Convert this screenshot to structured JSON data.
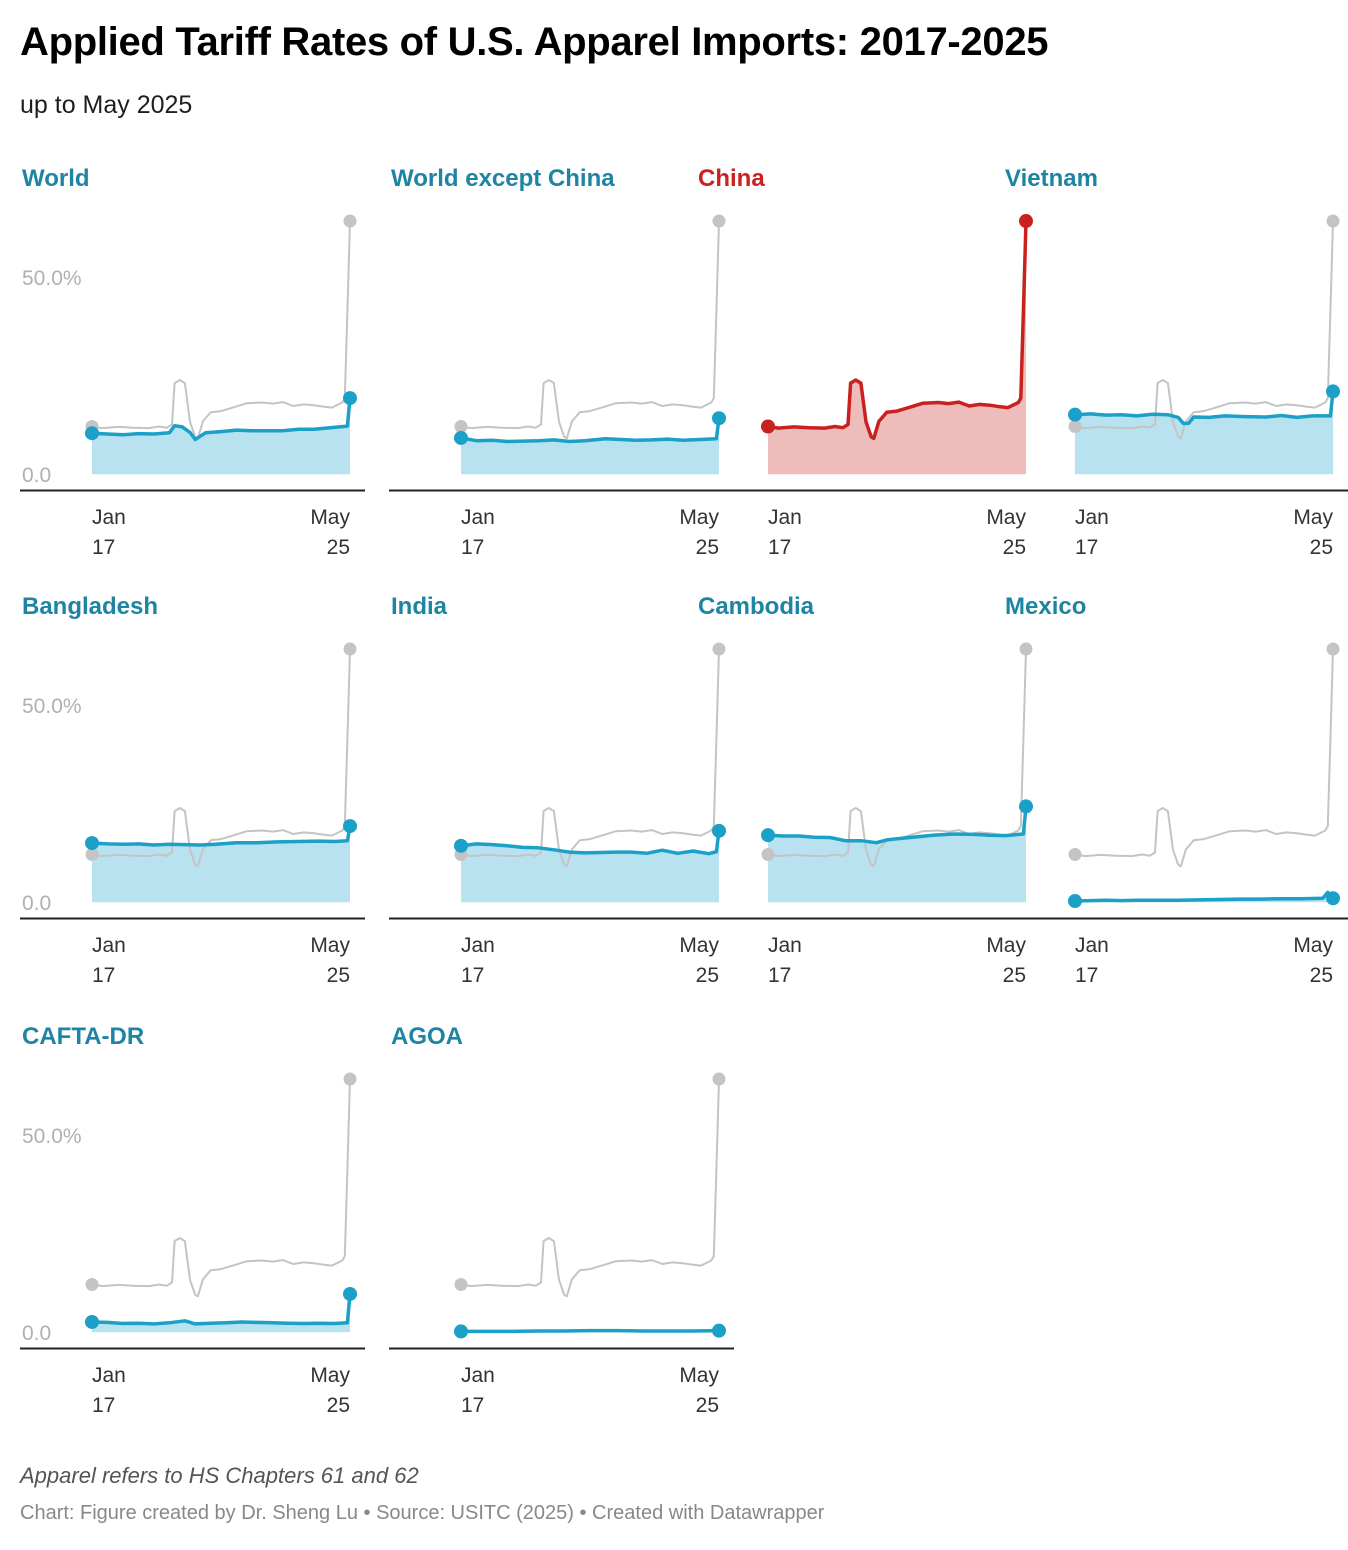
{
  "title": "Applied Tariff Rates of U.S. Apparel Imports: 2017-2025",
  "subtitle": "up to May 2025",
  "notes": "Apparel refers to HS Chapters 61 and 62",
  "footer": "Chart: Figure created by Dr. Sheng Lu • Source: USITC (2025) • Created with Datawrapper",
  "colors": {
    "highlight_line": "#1ba0c8",
    "highlight_fill": "#b8e2f0",
    "china_line": "#c9211f",
    "china_fill": "#efbcbc",
    "reference_line": "#c4c4c4",
    "title_blue": "#1e84a4",
    "axis": "#222222"
  },
  "chart_data": {
    "type": "area",
    "small_multiples": true,
    "unit": "%",
    "ylim": [
      -4,
      67
    ],
    "y_ticks": [
      {
        "value": 0,
        "label": "0.0"
      },
      {
        "value": 50,
        "label": "50.0%"
      }
    ],
    "x_range": [
      "2017-01",
      "2025-05"
    ],
    "x_ticks": [
      {
        "month": "Jan",
        "year": "17"
      },
      {
        "month": "May",
        "year": "25"
      }
    ],
    "reference_series": "China",
    "panels": [
      {
        "name": "World",
        "highlight": false,
        "show_y_ticks": true,
        "points": [
          [
            0,
            10.4
          ],
          [
            6,
            10.2
          ],
          [
            12,
            10.0
          ],
          [
            18,
            10.3
          ],
          [
            24,
            10.2
          ],
          [
            30,
            10.5
          ],
          [
            32,
            12.3
          ],
          [
            35,
            12.0
          ],
          [
            38,
            10.6
          ],
          [
            40,
            8.8
          ],
          [
            44,
            10.5
          ],
          [
            50,
            10.8
          ],
          [
            56,
            11.2
          ],
          [
            62,
            11.0
          ],
          [
            68,
            11.0
          ],
          [
            74,
            11.0
          ],
          [
            80,
            11.4
          ],
          [
            86,
            11.4
          ],
          [
            99,
            12.2
          ],
          [
            100,
            19.3
          ]
        ]
      },
      {
        "name": "World except China",
        "highlight": false,
        "show_y_ticks": false,
        "points": [
          [
            0,
            9.2
          ],
          [
            6,
            8.5
          ],
          [
            12,
            8.6
          ],
          [
            18,
            8.3
          ],
          [
            24,
            8.4
          ],
          [
            30,
            8.5
          ],
          [
            36,
            8.7
          ],
          [
            42,
            8.3
          ],
          [
            48,
            8.5
          ],
          [
            56,
            9.0
          ],
          [
            62,
            8.8
          ],
          [
            68,
            8.6
          ],
          [
            74,
            8.7
          ],
          [
            80,
            8.9
          ],
          [
            86,
            8.6
          ],
          [
            99,
            9.0
          ],
          [
            100,
            14.2
          ]
        ]
      },
      {
        "name": "China",
        "highlight": true,
        "show_y_ticks": false,
        "points": [
          [
            0,
            12.1
          ],
          [
            4,
            11.7
          ],
          [
            10,
            12.0
          ],
          [
            16,
            11.8
          ],
          [
            22,
            11.7
          ],
          [
            26,
            12.1
          ],
          [
            29,
            11.8
          ],
          [
            31,
            12.6
          ],
          [
            32,
            23.1
          ],
          [
            34,
            23.9
          ],
          [
            36,
            23.1
          ],
          [
            38,
            13.3
          ],
          [
            40,
            9.5
          ],
          [
            41,
            9.1
          ],
          [
            43,
            13.4
          ],
          [
            46,
            15.7
          ],
          [
            50,
            16.0
          ],
          [
            56,
            17.2
          ],
          [
            60,
            18.0
          ],
          [
            66,
            18.2
          ],
          [
            70,
            17.9
          ],
          [
            74,
            18.3
          ],
          [
            78,
            17.3
          ],
          [
            82,
            17.7
          ],
          [
            86,
            17.5
          ],
          [
            90,
            17.1
          ],
          [
            93,
            16.9
          ],
          [
            97,
            18.2
          ],
          [
            98,
            19.3
          ],
          [
            99,
            41.3
          ],
          [
            100,
            64.2
          ]
        ]
      },
      {
        "name": "Vietnam",
        "highlight": false,
        "show_y_ticks": false,
        "points": [
          [
            0,
            15.1
          ],
          [
            6,
            15.3
          ],
          [
            12,
            15.0
          ],
          [
            18,
            15.1
          ],
          [
            24,
            14.8
          ],
          [
            30,
            15.2
          ],
          [
            36,
            15.1
          ],
          [
            40,
            14.4
          ],
          [
            42,
            12.9
          ],
          [
            44,
            12.9
          ],
          [
            46,
            14.5
          ],
          [
            52,
            14.4
          ],
          [
            58,
            14.8
          ],
          [
            66,
            14.6
          ],
          [
            74,
            14.5
          ],
          [
            80,
            14.9
          ],
          [
            86,
            14.4
          ],
          [
            92,
            14.8
          ],
          [
            99,
            14.8
          ],
          [
            100,
            21.0
          ]
        ]
      },
      {
        "name": "Bangladesh",
        "highlight": false,
        "show_y_ticks": true,
        "points": [
          [
            0,
            15.0
          ],
          [
            6,
            14.8
          ],
          [
            12,
            14.7
          ],
          [
            18,
            14.8
          ],
          [
            24,
            14.5
          ],
          [
            30,
            14.7
          ],
          [
            36,
            14.6
          ],
          [
            42,
            14.5
          ],
          [
            48,
            14.7
          ],
          [
            56,
            15.1
          ],
          [
            64,
            15.1
          ],
          [
            72,
            15.3
          ],
          [
            80,
            15.4
          ],
          [
            88,
            15.5
          ],
          [
            94,
            15.4
          ],
          [
            99,
            15.6
          ],
          [
            100,
            19.3
          ]
        ]
      },
      {
        "name": "India",
        "highlight": false,
        "show_y_ticks": false,
        "points": [
          [
            0,
            14.3
          ],
          [
            6,
            14.8
          ],
          [
            12,
            14.6
          ],
          [
            18,
            14.3
          ],
          [
            24,
            13.9
          ],
          [
            30,
            13.8
          ],
          [
            36,
            13.3
          ],
          [
            42,
            12.7
          ],
          [
            48,
            12.5
          ],
          [
            54,
            12.6
          ],
          [
            60,
            12.7
          ],
          [
            66,
            12.7
          ],
          [
            72,
            12.4
          ],
          [
            78,
            13.2
          ],
          [
            84,
            12.4
          ],
          [
            90,
            13.0
          ],
          [
            96,
            12.3
          ],
          [
            99,
            12.8
          ],
          [
            100,
            18.1
          ]
        ]
      },
      {
        "name": "Cambodia",
        "highlight": false,
        "show_y_ticks": false,
        "points": [
          [
            0,
            17.0
          ],
          [
            6,
            16.8
          ],
          [
            12,
            16.8
          ],
          [
            18,
            16.5
          ],
          [
            24,
            16.4
          ],
          [
            30,
            15.6
          ],
          [
            36,
            15.6
          ],
          [
            42,
            15.1
          ],
          [
            46,
            15.8
          ],
          [
            52,
            16.2
          ],
          [
            58,
            16.6
          ],
          [
            64,
            17.0
          ],
          [
            72,
            17.3
          ],
          [
            80,
            17.2
          ],
          [
            86,
            17.0
          ],
          [
            92,
            16.9
          ],
          [
            99,
            17.3
          ],
          [
            100,
            24.3
          ]
        ]
      },
      {
        "name": "Mexico",
        "highlight": false,
        "show_y_ticks": false,
        "points": [
          [
            0,
            0.3
          ],
          [
            6,
            0.4
          ],
          [
            12,
            0.5
          ],
          [
            18,
            0.4
          ],
          [
            24,
            0.5
          ],
          [
            32,
            0.5
          ],
          [
            40,
            0.5
          ],
          [
            48,
            0.6
          ],
          [
            56,
            0.7
          ],
          [
            64,
            0.8
          ],
          [
            72,
            0.8
          ],
          [
            80,
            0.9
          ],
          [
            88,
            0.9
          ],
          [
            96,
            1.0
          ],
          [
            98,
            2.5
          ],
          [
            99,
            1.2
          ],
          [
            100,
            1.0
          ]
        ]
      },
      {
        "name": "CAFTA-DR",
        "highlight": false,
        "show_y_ticks": true,
        "points": [
          [
            0,
            2.6
          ],
          [
            6,
            2.5
          ],
          [
            12,
            2.2
          ],
          [
            18,
            2.3
          ],
          [
            24,
            2.1
          ],
          [
            30,
            2.4
          ],
          [
            36,
            2.9
          ],
          [
            40,
            2.1
          ],
          [
            46,
            2.3
          ],
          [
            52,
            2.4
          ],
          [
            58,
            2.6
          ],
          [
            64,
            2.5
          ],
          [
            70,
            2.4
          ],
          [
            76,
            2.3
          ],
          [
            82,
            2.2
          ],
          [
            88,
            2.3
          ],
          [
            94,
            2.2
          ],
          [
            99,
            2.4
          ],
          [
            100,
            9.7
          ]
        ]
      },
      {
        "name": "AGOA",
        "highlight": false,
        "show_y_ticks": false,
        "points": [
          [
            0,
            0.2
          ],
          [
            10,
            0.2
          ],
          [
            20,
            0.2
          ],
          [
            30,
            0.3
          ],
          [
            40,
            0.3
          ],
          [
            50,
            0.4
          ],
          [
            60,
            0.4
          ],
          [
            70,
            0.3
          ],
          [
            80,
            0.3
          ],
          [
            90,
            0.3
          ],
          [
            100,
            0.4
          ]
        ]
      }
    ]
  }
}
